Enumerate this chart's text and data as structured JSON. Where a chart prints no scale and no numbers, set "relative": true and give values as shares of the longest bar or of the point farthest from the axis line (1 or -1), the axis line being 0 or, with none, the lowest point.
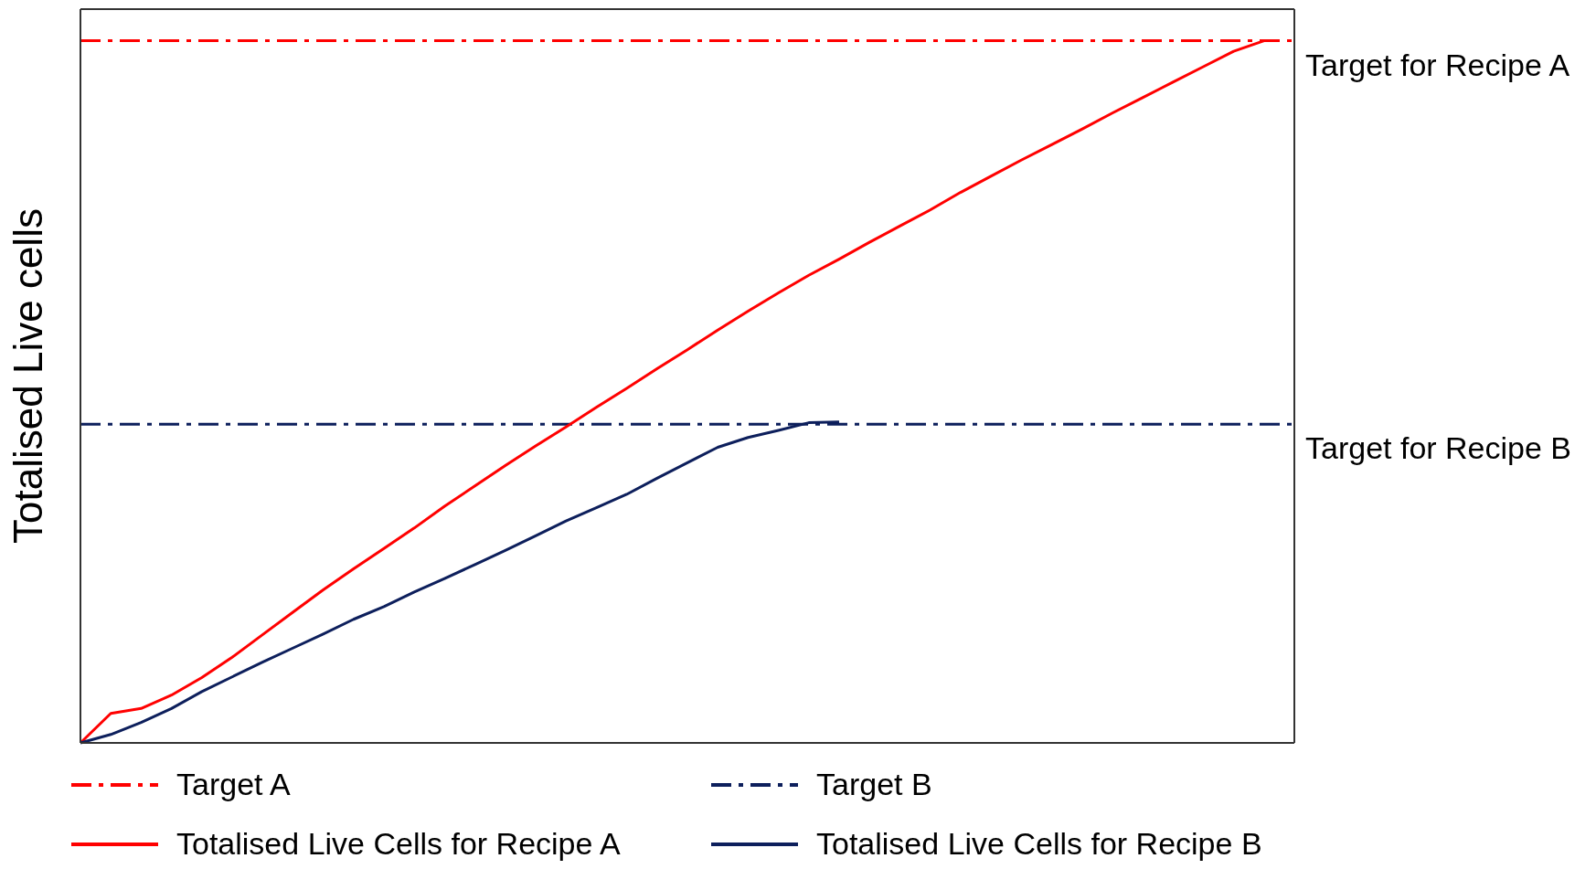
{
  "chart_data": {
    "type": "line",
    "relative": true,
    "ylabel": "Totalised Live cells",
    "categories": [
      null,
      null,
      null,
      null,
      null,
      null,
      null,
      null,
      null,
      null,
      null,
      null,
      null,
      null,
      null,
      null,
      null,
      null,
      null,
      null,
      null,
      null,
      null,
      null,
      null,
      null,
      null,
      null,
      null,
      null,
      null,
      null,
      null,
      null,
      null,
      null,
      null,
      null,
      null,
      null,
      null
    ],
    "series": [
      {
        "name": "Target A",
        "color": "#ff0000",
        "line_style": "dashed",
        "values": [
          1,
          1,
          1,
          1,
          1,
          1,
          1,
          1,
          1,
          1,
          1,
          1,
          1,
          1,
          1,
          1,
          1,
          1,
          1,
          1,
          1,
          1,
          1,
          1,
          1,
          1,
          1,
          1,
          1,
          1,
          1,
          1,
          1,
          1,
          1,
          1,
          1,
          1,
          1,
          1,
          1
        ]
      },
      {
        "name": "Target B",
        "color": "#0d1f5c",
        "line_style": "dashed",
        "values": [
          0.454,
          0.454,
          0.454,
          0.454,
          0.454,
          0.454,
          0.454,
          0.454,
          0.454,
          0.454,
          0.454,
          0.454,
          0.454,
          0.454,
          0.454,
          0.454,
          0.454,
          0.454,
          0.454,
          0.454,
          0.454,
          0.454,
          0.454,
          0.454,
          0.454,
          0.454,
          0.454,
          0.454,
          0.454,
          0.454,
          0.454,
          0.454,
          0.454,
          0.454,
          0.454,
          0.454,
          0.454,
          0.454,
          0.454,
          0.454,
          0.454
        ]
      },
      {
        "name": "Totalised Live Cells for Recipe A",
        "color": "#ff0000",
        "line_style": "solid",
        "values": [
          0,
          0.042,
          0.049,
          0.068,
          0.093,
          0.122,
          0.154,
          0.186,
          0.218,
          0.248,
          0.277,
          0.306,
          0.337,
          0.366,
          0.395,
          0.423,
          0.45,
          0.478,
          0.505,
          0.533,
          0.56,
          0.588,
          0.615,
          0.641,
          0.666,
          0.689,
          0.713,
          0.736,
          0.759,
          0.784,
          0.807,
          0.83,
          0.852,
          0.874,
          0.897,
          0.919,
          0.941,
          0.963,
          0.985,
          1,
          null
        ]
      },
      {
        "name": "Totalised Live Cells for Recipe B",
        "color": "#0d1f5c",
        "line_style": "solid",
        "values": [
          0,
          0.012,
          0.029,
          0.049,
          0.073,
          0.094,
          0.115,
          0.135,
          0.155,
          0.176,
          0.194,
          0.215,
          0.234,
          0.254,
          0.274,
          0.295,
          0.316,
          0.335,
          0.354,
          0.377,
          0.399,
          0.421,
          0.435,
          0.445,
          0.456,
          0.457,
          null,
          null,
          null,
          null,
          null,
          null,
          null,
          null,
          null,
          null,
          null,
          null,
          null,
          null,
          null
        ]
      }
    ],
    "annotations": [
      "Target  for Recipe A",
      "Target for Recipe B"
    ],
    "legend": "bottom",
    "marker": "none"
  }
}
